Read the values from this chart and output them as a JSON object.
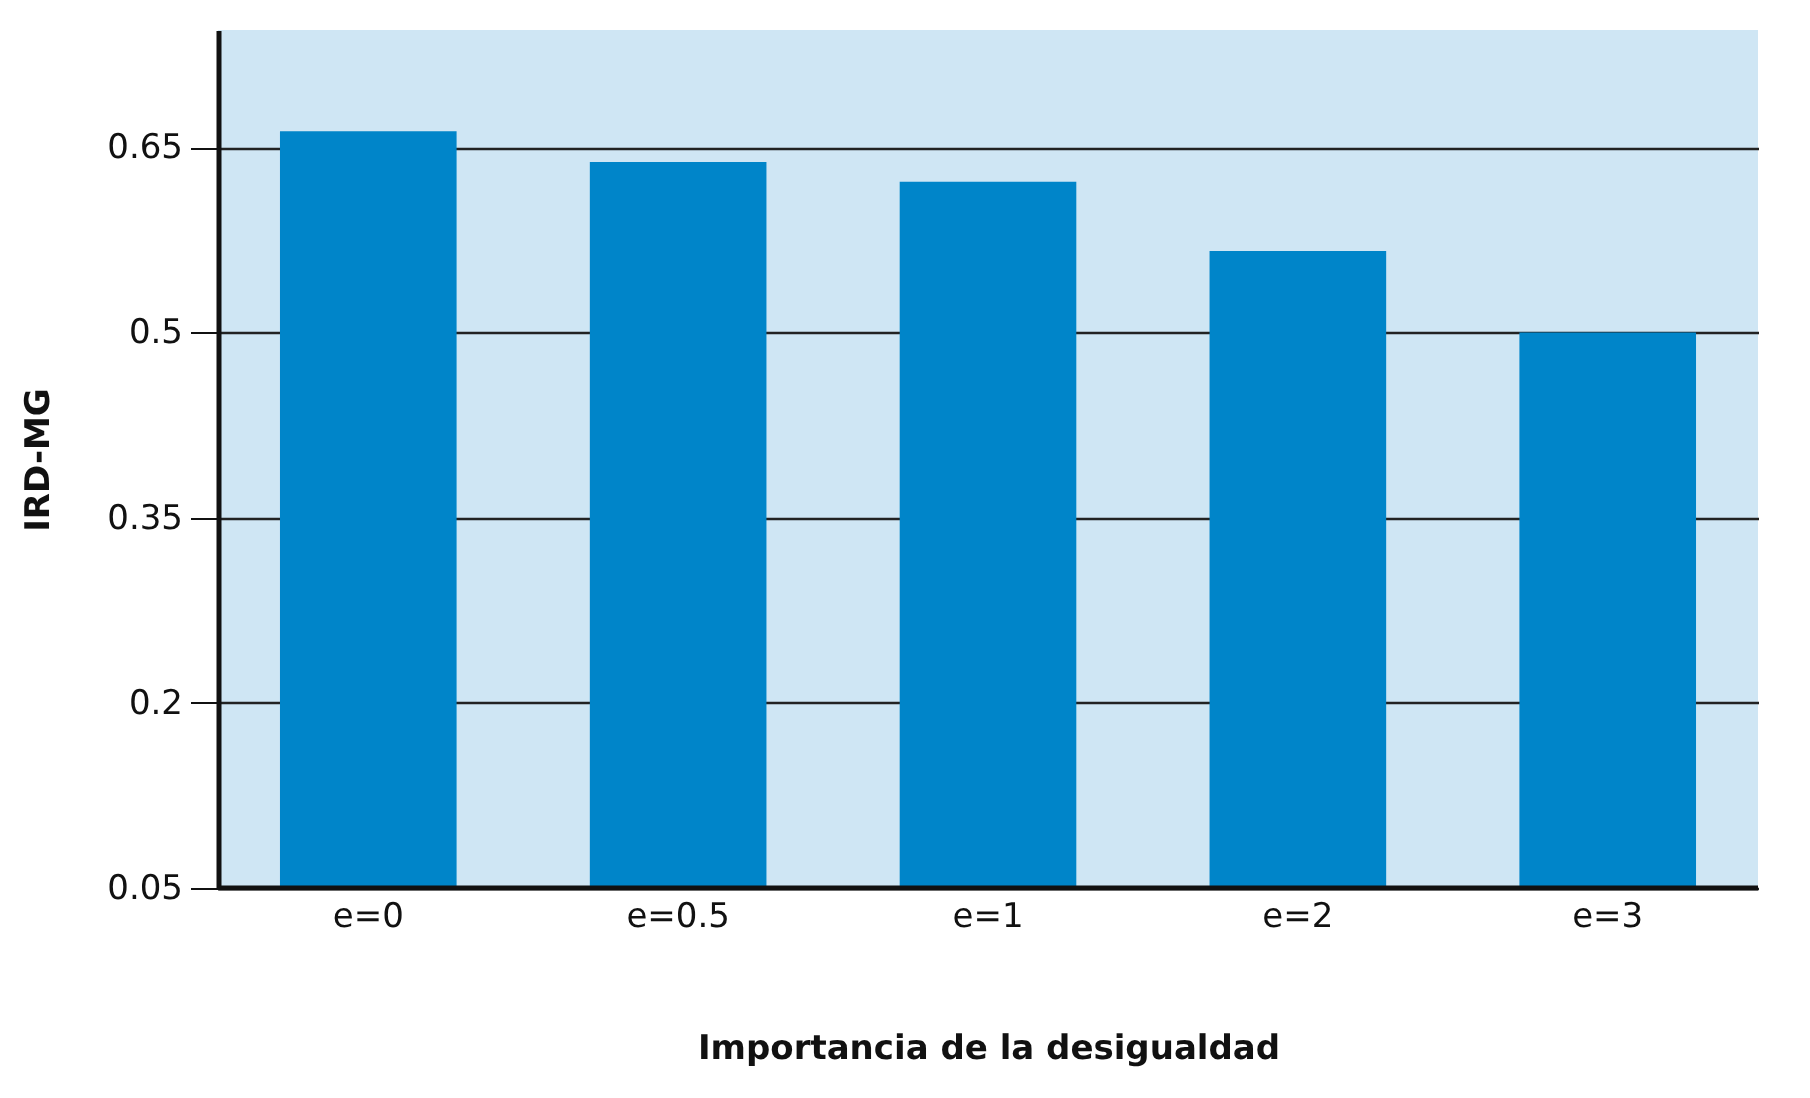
{
  "chart_data": {
    "type": "bar",
    "xlabel": "Importancia de la desigualdad",
    "ylabel": "IRD-MG",
    "categories": [
      "e=0",
      "e=0.5",
      "e=1",
      "e=2",
      "e=3"
    ],
    "values": [
      0.663,
      0.638,
      0.622,
      0.566,
      0.5
    ],
    "color": "#0085c9",
    "ylim": [
      0.05,
      0.745
    ],
    "yticks": [
      0.05,
      0.2,
      0.35,
      0.5,
      0.65
    ],
    "grid": "y"
  }
}
